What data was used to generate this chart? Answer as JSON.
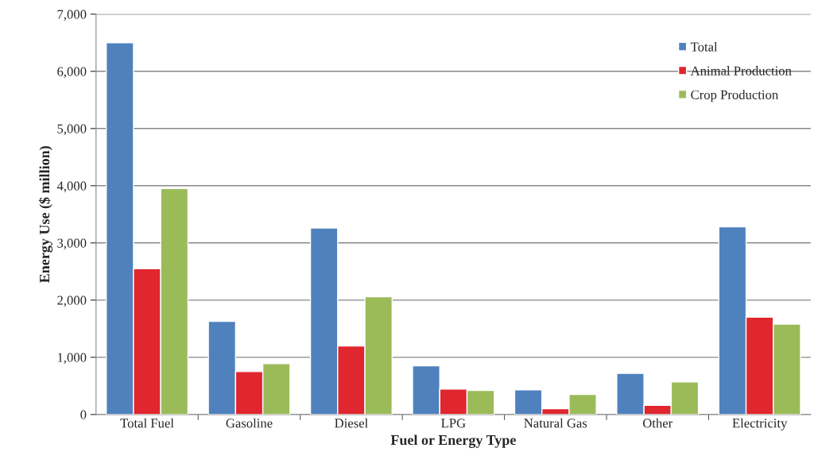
{
  "chart_data": {
    "type": "bar",
    "xlabel": "Fuel or Energy Type",
    "ylabel": "Energy Use ($ million)",
    "categories": [
      "Total Fuel",
      "Gasoline",
      "Diesel",
      "LPG",
      "Natural Gas",
      "Other",
      "Electricity"
    ],
    "series": [
      {
        "name": "Total",
        "color": "#4f81bd",
        "values": [
          6500,
          1630,
          3260,
          850,
          430,
          720,
          3280
        ]
      },
      {
        "name": "Animal Production",
        "color": "#e0262e",
        "values": [
          2550,
          750,
          1200,
          445,
          100,
          160,
          1700
        ]
      },
      {
        "name": "Crop Production",
        "color": "#9bbb59",
        "values": [
          3950,
          890,
          2060,
          420,
          350,
          570,
          1580
        ]
      }
    ],
    "ylim": [
      0,
      7000
    ],
    "yticks": [
      {
        "value": 0,
        "label": "0"
      },
      {
        "value": 1000,
        "label": "1,000"
      },
      {
        "value": 2000,
        "label": "2,000"
      },
      {
        "value": 3000,
        "label": "3,000"
      },
      {
        "value": 4000,
        "label": "4,000"
      },
      {
        "value": 5000,
        "label": "5,000"
      },
      {
        "value": 6000,
        "label": "6,000"
      },
      {
        "value": 7000,
        "label": "7,000"
      }
    ],
    "grid": "y",
    "legend": "top right"
  }
}
